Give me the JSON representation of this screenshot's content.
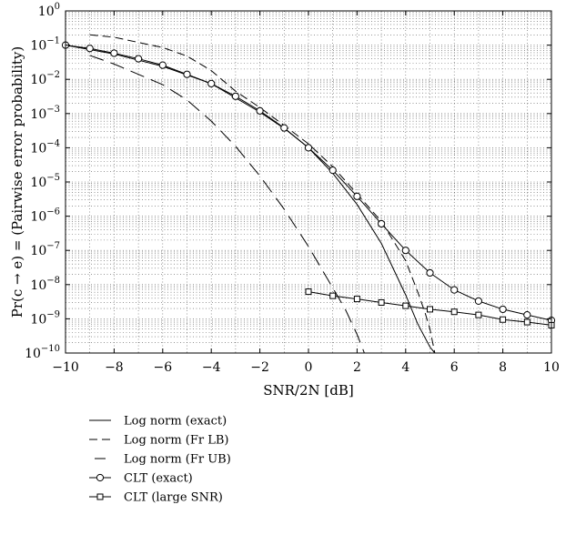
{
  "chart_data": {
    "type": "line",
    "xlabel": "SNR/2N [dB]",
    "ylabel": "Pr(c → e) = (Pairwise error probability)",
    "x_scale": "linear",
    "y_scale": "log",
    "xlim": [
      -10,
      10
    ],
    "ylim_exponent": [
      -10,
      0
    ],
    "x_ticks": [
      -10,
      -8,
      -6,
      -4,
      -2,
      0,
      2,
      4,
      6,
      8,
      10
    ],
    "x_tick_labels": [
      "−10",
      "−8",
      "−6",
      "−4",
      "−2",
      "0",
      "2",
      "4",
      "6",
      "8",
      "10"
    ],
    "y_tick_exponents": [
      0,
      -1,
      -2,
      -3,
      -4,
      -5,
      -6,
      -7,
      -8,
      -9,
      -10
    ],
    "y_tick_base": "10",
    "y_tick_exps_text": [
      "0",
      "−1",
      "−2",
      "−3",
      "−4",
      "−5",
      "−6",
      "−7",
      "−8",
      "−9",
      "−10"
    ],
    "grid": true,
    "legend_position": "below",
    "series": [
      {
        "name": "Log norm (exact)",
        "style": "solid",
        "marker": "none",
        "points": [
          [
            -10,
            0.1
          ],
          [
            -8,
            0.055
          ],
          [
            -6,
            0.024
          ],
          [
            -4,
            0.0075
          ],
          [
            -2,
            0.0011
          ],
          [
            -1,
            0.00037
          ],
          [
            0,
            0.0001
          ],
          [
            1,
            1.8e-05
          ],
          [
            2,
            2.2e-06
          ],
          [
            3,
            1.6e-07
          ],
          [
            4,
            5e-09
          ],
          [
            4.5,
            7e-10
          ],
          [
            5,
            1.5e-10
          ],
          [
            5.2,
            1e-10
          ]
        ]
      },
      {
        "name": "Log norm (Fr LB)",
        "style": "dash",
        "marker": "none",
        "points": [
          [
            -9,
            0.2
          ],
          [
            -8,
            0.17
          ],
          [
            -6,
            0.085
          ],
          [
            -5,
            0.048
          ],
          [
            -4,
            0.018
          ],
          [
            -3,
            0.0045
          ],
          [
            -2,
            0.0015
          ],
          [
            -1,
            0.00045
          ],
          [
            0,
            0.00013
          ],
          [
            1,
            2.8e-05
          ],
          [
            2,
            4.5e-06
          ],
          [
            3,
            7e-07
          ],
          [
            4,
            5e-08
          ],
          [
            4.5,
            6e-09
          ],
          [
            4.8,
            1.5e-09
          ],
          [
            5.0,
            5e-10
          ],
          [
            5.2,
            1e-10
          ]
        ]
      },
      {
        "name": "Log norm (Fr UB)",
        "style": "longdash",
        "marker": "none",
        "points": [
          [
            -9,
            0.05
          ],
          [
            -8,
            0.028
          ],
          [
            -6,
            0.007
          ],
          [
            -5,
            0.0025
          ],
          [
            -4,
            0.0006
          ],
          [
            -3,
            0.00011
          ],
          [
            -2,
            1.5e-05
          ],
          [
            -1,
            1.6e-06
          ],
          [
            0,
            1.3e-07
          ],
          [
            1,
            8e-09
          ],
          [
            1.5,
            2e-09
          ],
          [
            2,
            3.5e-10
          ],
          [
            2.3,
            1e-10
          ]
        ]
      },
      {
        "name": "CLT (exact)",
        "style": "solid",
        "marker": "circle",
        "points": [
          [
            -10,
            0.1
          ],
          [
            -9,
            0.08
          ],
          [
            -8,
            0.058
          ],
          [
            -7,
            0.04
          ],
          [
            -6,
            0.026
          ],
          [
            -5,
            0.014
          ],
          [
            -4,
            0.0075
          ],
          [
            -3,
            0.0032
          ],
          [
            -2,
            0.0012
          ],
          [
            -1,
            0.00038
          ],
          [
            0,
            0.0001
          ],
          [
            1,
            2.2e-05
          ],
          [
            2,
            3.8e-06
          ],
          [
            3,
            6e-07
          ],
          [
            4,
            1e-07
          ],
          [
            5,
            2.2e-08
          ],
          [
            6,
            7e-09
          ],
          [
            7,
            3.3e-09
          ],
          [
            8,
            1.9e-09
          ],
          [
            9,
            1.3e-09
          ],
          [
            10,
            9e-10
          ]
        ]
      },
      {
        "name": "CLT (large SNR)",
        "style": "solid",
        "marker": "square",
        "points": [
          [
            0,
            6.2e-09
          ],
          [
            1,
            4.7e-09
          ],
          [
            2,
            3.8e-09
          ],
          [
            3,
            3e-09
          ],
          [
            4,
            2.4e-09
          ],
          [
            5,
            1.9e-09
          ],
          [
            6,
            1.6e-09
          ],
          [
            7,
            1.3e-09
          ],
          [
            8,
            9.5e-10
          ],
          [
            9,
            8e-10
          ],
          [
            10,
            6.5e-10
          ]
        ]
      }
    ]
  }
}
